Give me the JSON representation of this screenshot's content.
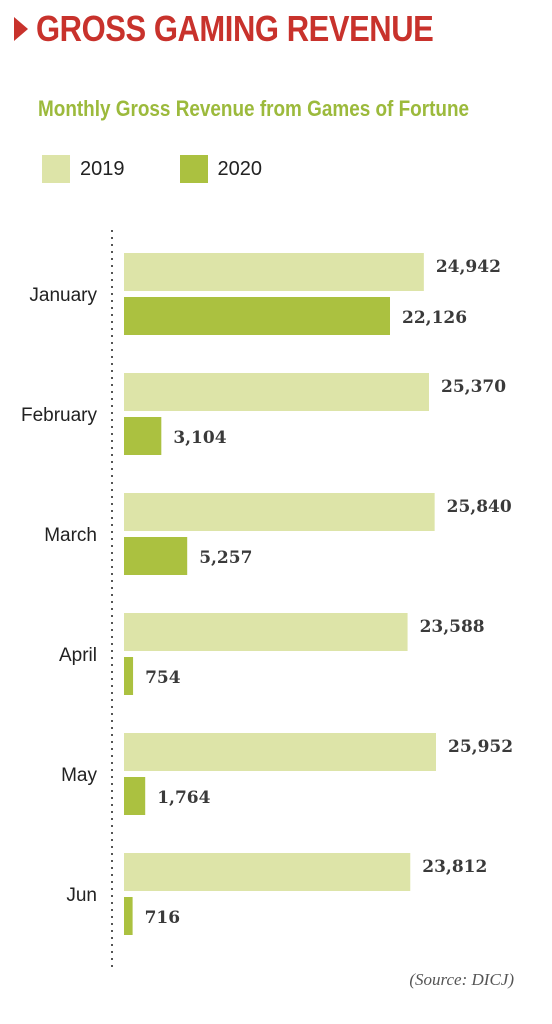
{
  "header": {
    "title": "GROSS GAMING REVENUE"
  },
  "source": "(Source: DICJ)",
  "colors": {
    "accent_red": "#c8322c",
    "series_2019": "#dde4a8",
    "series_2020": "#abc140",
    "subtitle": "#9cba3c"
  },
  "chart_data": {
    "type": "bar",
    "orientation": "horizontal",
    "title": "Monthly Gross Revenue from Games of Fortune",
    "categories": [
      "January",
      "February",
      "March",
      "April",
      "May",
      "Jun"
    ],
    "series": [
      {
        "name": "2019",
        "values": [
          24942,
          25370,
          25840,
          23588,
          25952,
          23812
        ]
      },
      {
        "name": "2020",
        "values": [
          22126,
          3104,
          5257,
          754,
          1764,
          716
        ]
      }
    ],
    "value_labels": {
      "2019": [
        "24,942",
        "25,370",
        "25,840",
        "23,588",
        "25,952",
        "23,812"
      ],
      "2020": [
        "22,126",
        "3,104",
        "5,257",
        "754",
        "1,764",
        "716"
      ]
    },
    "legend_position": "top-left",
    "grid": false
  }
}
